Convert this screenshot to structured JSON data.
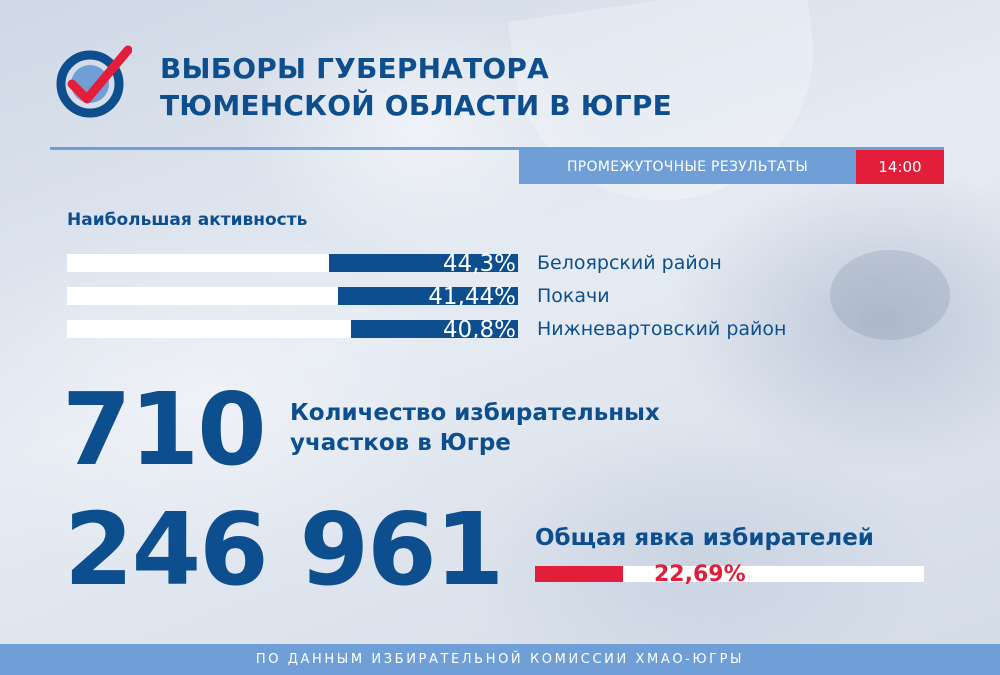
{
  "header": {
    "title_line1": "ВЫБОРЫ ГУБЕРНАТОРА",
    "title_line2": "ТЮМЕНСКОЙ ОБЛАСТИ В ЮГРЕ",
    "subtitle": "ПРОМЕЖУТОЧНЫЕ РЕЗУЛЬТАТЫ",
    "time": "14:00",
    "logo_icon": "ballot-checkmark-icon"
  },
  "activity": {
    "title": "Наибольшая активность",
    "items": [
      {
        "label": "Белоярский район",
        "value_text": "44,3%",
        "fill_fraction": 0.42
      },
      {
        "label": "Покачи",
        "value_text": "41,44%",
        "fill_fraction": 0.4
      },
      {
        "label": "Нижневартовский район",
        "value_text": "40,8%",
        "fill_fraction": 0.37
      }
    ]
  },
  "stations": {
    "value": "710",
    "label_line1": "Количество избирательных",
    "label_line2": "участков в Югре"
  },
  "turnout": {
    "value": "246 961",
    "label": "Общая явка избирателей",
    "percent_text": "22,69%",
    "fill_fraction": 0.2269
  },
  "footer": {
    "text": "ПО ДАННЫМ ИЗБИРАТЕЛЬНОЙ КОМИССИИ ХМАО-ЮГРЫ"
  },
  "colors": {
    "primary": "#0d4f8e",
    "accent_red": "#e31e3a",
    "light_blue": "#6f9fd6"
  }
}
